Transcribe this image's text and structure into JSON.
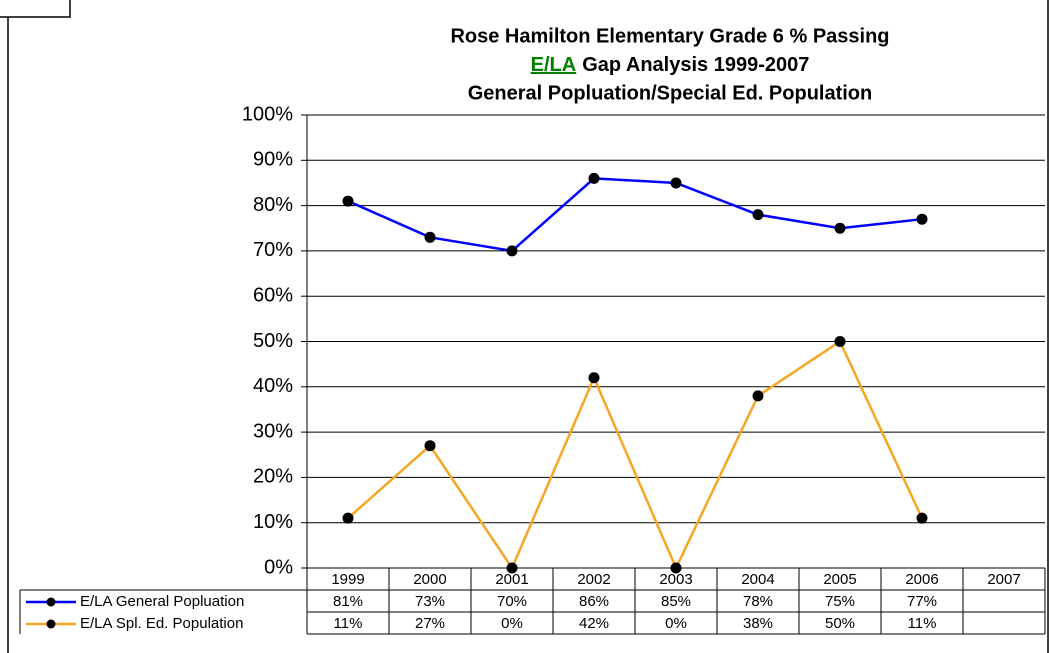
{
  "chart_data": {
    "type": "line",
    "title": "Rose Hamilton Elementary Grade 6 % Passing",
    "title_highlight": "E/LA",
    "title_line2": "Gap Analysis 1999-2007",
    "subtitle": "General Popluation/Special Ed. Population",
    "categories": [
      "1999",
      "2000",
      "2001",
      "2002",
      "2003",
      "2004",
      "2005",
      "2006",
      "2007"
    ],
    "series": [
      {
        "name": "E/LA General Popluation",
        "color": "#0000ff",
        "values": [
          81,
          73,
          70,
          86,
          85,
          78,
          75,
          77,
          null
        ],
        "value_labels": [
          "81%",
          "73%",
          "70%",
          "86%",
          "85%",
          "78%",
          "75%",
          "77%",
          null
        ]
      },
      {
        "name": "E/LA Spl. Ed. Population",
        "color": "#f5a623",
        "values": [
          11,
          27,
          0,
          42,
          0,
          38,
          50,
          11,
          null
        ],
        "value_labels": [
          "11%",
          "27%",
          "0%",
          "42%",
          "0%",
          "38%",
          "50%",
          "11%",
          null
        ]
      }
    ],
    "ylim": [
      0,
      100
    ],
    "yticks": [
      {
        "value": 0,
        "label": "0%"
      },
      {
        "value": 10,
        "label": "10%"
      },
      {
        "value": 20,
        "label": "20%"
      },
      {
        "value": 30,
        "label": "30%"
      },
      {
        "value": 40,
        "label": "40%"
      },
      {
        "value": 50,
        "label": "50%"
      },
      {
        "value": 60,
        "label": "60%"
      },
      {
        "value": 70,
        "label": "70%"
      },
      {
        "value": 80,
        "label": "80%"
      },
      {
        "value": 90,
        "label": "90%"
      },
      {
        "value": 100,
        "label": "100%"
      }
    ],
    "grid": true
  }
}
